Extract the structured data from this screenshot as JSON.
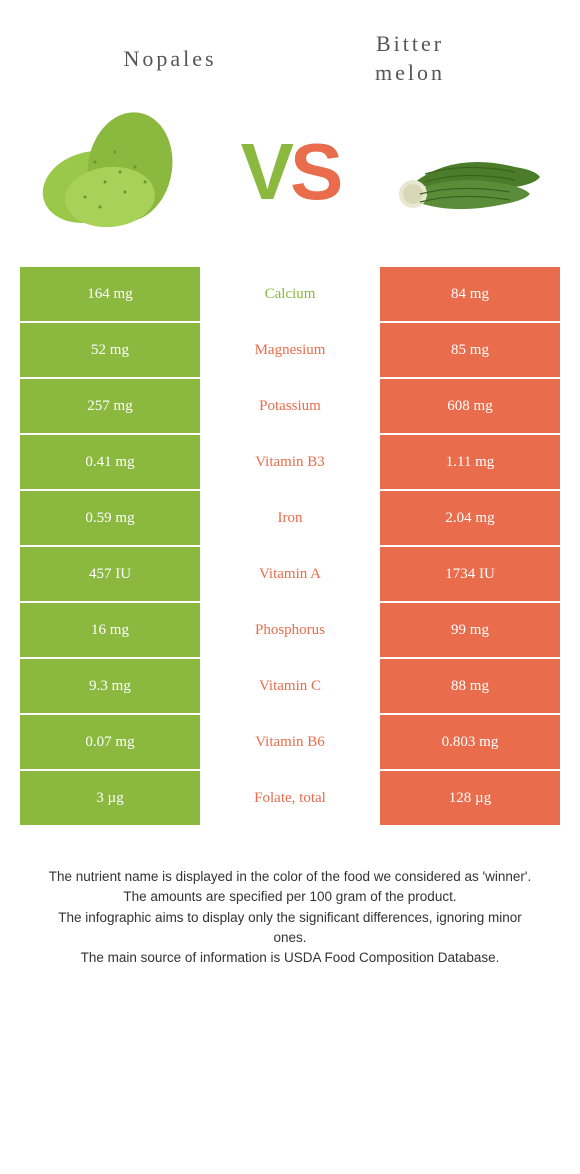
{
  "colors": {
    "green": "#8bb93f",
    "orange": "#e96c4c",
    "text": "#555"
  },
  "header": {
    "left_title": "Nopales",
    "right_title_line1": "Bitter",
    "right_title_line2": "melon",
    "vs_v": "V",
    "vs_s": "S"
  },
  "rows": [
    {
      "left": "164 mg",
      "mid": "Calcium",
      "right": "84 mg",
      "winner": "left"
    },
    {
      "left": "52 mg",
      "mid": "Magnesium",
      "right": "85 mg",
      "winner": "right"
    },
    {
      "left": "257 mg",
      "mid": "Potassium",
      "right": "608 mg",
      "winner": "right"
    },
    {
      "left": "0.41 mg",
      "mid": "Vitamin B3",
      "right": "1.11 mg",
      "winner": "right"
    },
    {
      "left": "0.59 mg",
      "mid": "Iron",
      "right": "2.04 mg",
      "winner": "right"
    },
    {
      "left": "457 IU",
      "mid": "Vitamin A",
      "right": "1734 IU",
      "winner": "right"
    },
    {
      "left": "16 mg",
      "mid": "Phosphorus",
      "right": "99 mg",
      "winner": "right"
    },
    {
      "left": "9.3 mg",
      "mid": "Vitamin C",
      "right": "88 mg",
      "winner": "right"
    },
    {
      "left": "0.07 mg",
      "mid": "Vitamin B6",
      "right": "0.803 mg",
      "winner": "right"
    },
    {
      "left": "3 µg",
      "mid": "Folate, total",
      "right": "128 µg",
      "winner": "right"
    }
  ],
  "footer": {
    "l1": "The nutrient name is displayed in the color of the food we considered as 'winner'.",
    "l2": "The amounts are specified per 100 gram of the product.",
    "l3": "The infographic aims to display only the significant differences, ignoring minor ones.",
    "l4": "The main source of information is USDA Food Composition Database."
  }
}
